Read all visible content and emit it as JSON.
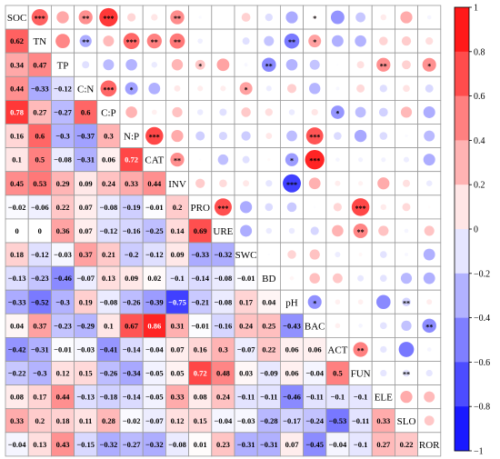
{
  "chart_data": {
    "type": "heatmap",
    "title": "",
    "variables": [
      "SOC",
      "TN",
      "TP",
      "C:N",
      "C:P",
      "N:P",
      "CAT",
      "INV",
      "PRO",
      "URE",
      "SWC",
      "BD",
      "pH",
      "BAC",
      "ACT",
      "FUN",
      "ELE",
      "SLO",
      "ROR"
    ],
    "lower_values": [
      [],
      [
        0.62
      ],
      [
        0.34,
        0.47
      ],
      [
        0.44,
        -0.33,
        -0.12
      ],
      [
        0.78,
        0.27,
        -0.27,
        0.6
      ],
      [
        0.16,
        0.6,
        -0.3,
        -0.37,
        0.3
      ],
      [
        0.1,
        0.5,
        -0.08,
        -0.31,
        0.06,
        0.72
      ],
      [
        0.45,
        0.53,
        0.29,
        0.09,
        0.24,
        0.33,
        0.44
      ],
      [
        -0.02,
        -0.06,
        0.22,
        0.07,
        -0.08,
        -0.19,
        -0.01,
        0.2
      ],
      [
        0,
        0,
        0.36,
        0.07,
        -0.12,
        -0.16,
        -0.25,
        0.14,
        0.69
      ],
      [
        0.18,
        -0.12,
        -0.03,
        0.37,
        0.21,
        -0.2,
        -0.12,
        0.09,
        -0.33,
        -0.32
      ],
      [
        -0.13,
        -0.23,
        -0.46,
        -0.07,
        0.13,
        0.09,
        0.02,
        -0.1,
        -0.14,
        -0.08,
        -0.01
      ],
      [
        -0.33,
        -0.52,
        -0.3,
        0.19,
        -0.08,
        -0.26,
        -0.39,
        -0.75,
        -0.21,
        -0.08,
        0.17,
        0.04
      ],
      [
        0.04,
        0.37,
        -0.23,
        -0.29,
        0.1,
        0.67,
        0.86,
        0.31,
        -0.01,
        -0.16,
        0.24,
        0.25,
        -0.43
      ],
      [
        -0.42,
        -0.31,
        -0.01,
        -0.03,
        -0.41,
        -0.14,
        -0.04,
        0.07,
        0.16,
        0.3,
        -0.07,
        0.22,
        0.06,
        0.06
      ],
      [
        -0.22,
        -0.3,
        0.12,
        0.15,
        -0.26,
        -0.34,
        -0.05,
        0.05,
        0.72,
        0.48,
        0.03,
        -0.09,
        0.06,
        -0.04,
        0.5
      ],
      [
        0.08,
        0.17,
        0.44,
        -0.13,
        -0.18,
        -0.14,
        -0.05,
        0.33,
        0.08,
        0.24,
        -0.11,
        -0.11,
        -0.46,
        -0.11,
        -0.1,
        -0.1
      ],
      [
        0.33,
        0.2,
        0.18,
        0.11,
        0.28,
        -0.02,
        -0.07,
        0.12,
        0.15,
        -0.04,
        -0.03,
        -0.28,
        -0.17,
        -0.24,
        -0.53,
        -0.11,
        0.33
      ],
      [
        -0.04,
        0.13,
        0.43,
        -0.15,
        -0.32,
        -0.27,
        -0.32,
        -0.08,
        0.01,
        0.23,
        -0.31,
        -0.31,
        0.07,
        -0.45,
        -0.04,
        -0.1,
        0.27,
        0.22
      ]
    ],
    "upper_stars": [
      {
        "row": "SOC",
        "col": "TN",
        "stars": "***"
      },
      {
        "row": "SOC",
        "col": "C:N",
        "stars": "**"
      },
      {
        "row": "SOC",
        "col": "C:P",
        "stars": "***"
      },
      {
        "row": "SOC",
        "col": "INV",
        "stars": "**"
      },
      {
        "row": "SOC",
        "col": "BAC",
        "stars": "*"
      },
      {
        "row": "TN",
        "col": "C:N",
        "stars": "**"
      },
      {
        "row": "TN",
        "col": "N:P",
        "stars": "***"
      },
      {
        "row": "TN",
        "col": "CAT",
        "stars": "**"
      },
      {
        "row": "TN",
        "col": "INV",
        "stars": "**"
      },
      {
        "row": "TN",
        "col": "pH",
        "stars": "**"
      },
      {
        "row": "TN",
        "col": "BAC",
        "stars": "*"
      },
      {
        "row": "TP",
        "col": "PRO",
        "stars": "*"
      },
      {
        "row": "TP",
        "col": "BD",
        "stars": "**"
      },
      {
        "row": "TP",
        "col": "ELE",
        "stars": "**"
      },
      {
        "row": "TP",
        "col": "ROR",
        "stars": "*"
      },
      {
        "row": "C:N",
        "col": "C:P",
        "stars": "***"
      },
      {
        "row": "C:N",
        "col": "N:P",
        "stars": "*"
      },
      {
        "row": "C:N",
        "col": "SWC",
        "stars": "*"
      },
      {
        "row": "C:P",
        "col": "ACT",
        "stars": "*"
      },
      {
        "row": "N:P",
        "col": "CAT",
        "stars": "***"
      },
      {
        "row": "N:P",
        "col": "BAC",
        "stars": "***"
      },
      {
        "row": "CAT",
        "col": "INV",
        "stars": "**"
      },
      {
        "row": "CAT",
        "col": "pH",
        "stars": "*"
      },
      {
        "row": "CAT",
        "col": "BAC",
        "stars": "***"
      },
      {
        "row": "INV",
        "col": "pH",
        "stars": "***"
      },
      {
        "row": "PRO",
        "col": "URE",
        "stars": "***"
      },
      {
        "row": "PRO",
        "col": "FUN",
        "stars": "***"
      },
      {
        "row": "URE",
        "col": "FUN",
        "stars": "**"
      },
      {
        "row": "pH",
        "col": "BAC",
        "stars": "*"
      },
      {
        "row": "pH",
        "col": "SLO",
        "stars": "**"
      },
      {
        "row": "BAC",
        "col": "ROR",
        "stars": "**"
      },
      {
        "row": "ACT",
        "col": "FUN",
        "stars": "**"
      },
      {
        "row": "FUN",
        "col": "SLO",
        "stars": "**"
      }
    ],
    "colorbar": {
      "range": [
        -1,
        1
      ],
      "ticks": [
        "1",
        "0.8",
        "0.6",
        "0.4",
        "0.2",
        "0",
        "−0.2",
        "−0.4",
        "−0.6",
        "−0.8",
        "−1"
      ],
      "colors": {
        "positive": "#ff0000",
        "neutral": "#ffffff",
        "negative": "#0000ff"
      }
    },
    "legend": "right"
  }
}
